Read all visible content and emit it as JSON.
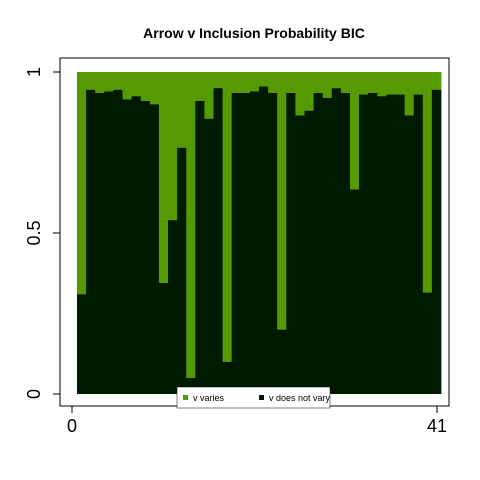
{
  "chart_data": {
    "type": "bar",
    "stacked": true,
    "title": "Arrow v Inclusion Probability BIC",
    "xlabel": "",
    "ylabel": "",
    "x_ticks": [
      "0",
      "41"
    ],
    "y_ticks": [
      "0",
      "0.5",
      "1"
    ],
    "ylim": [
      0,
      1
    ],
    "grid": false,
    "legend_position": "bottom-center",
    "colors": {
      "v_varies": "#559a00",
      "v_does_not_vary": "#001a00"
    },
    "series": [
      {
        "name": "v varies",
        "values": [
          0.69,
          0.055,
          0.065,
          0.06,
          0.055,
          0.085,
          0.075,
          0.09,
          0.1,
          0.655,
          0.46,
          0.235,
          0.95,
          0.09,
          0.145,
          0.05,
          0.9,
          0.065,
          0.065,
          0.06,
          0.045,
          0.065,
          0.8,
          0.065,
          0.135,
          0.12,
          0.065,
          0.08,
          0.05,
          0.065,
          0.365,
          0.07,
          0.065,
          0.075,
          0.07,
          0.07,
          0.135,
          0.07,
          0.685,
          0.055
        ]
      },
      {
        "name": "v does not vary",
        "values": [
          0.31,
          0.945,
          0.935,
          0.94,
          0.945,
          0.915,
          0.925,
          0.91,
          0.9,
          0.345,
          0.54,
          0.765,
          0.05,
          0.91,
          0.855,
          0.95,
          0.1,
          0.935,
          0.935,
          0.94,
          0.955,
          0.935,
          0.2,
          0.935,
          0.865,
          0.88,
          0.935,
          0.92,
          0.95,
          0.935,
          0.635,
          0.93,
          0.935,
          0.925,
          0.93,
          0.93,
          0.865,
          0.93,
          0.315,
          0.945
        ]
      }
    ]
  }
}
